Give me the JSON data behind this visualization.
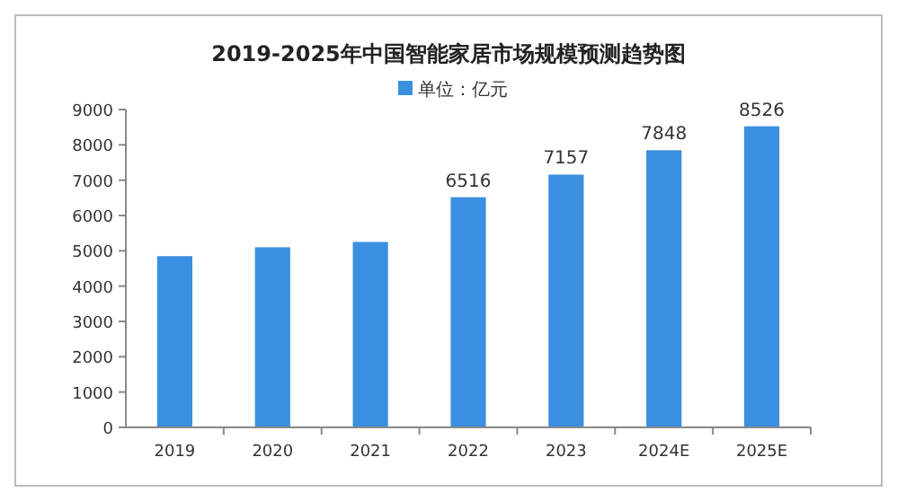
{
  "chart_data": {
    "type": "bar",
    "title": "2019-2025年中国智能家居市场规模预测趋势图",
    "categories": [
      "2019",
      "2020",
      "2021",
      "2022",
      "2023",
      "2024E",
      "2025E"
    ],
    "series": [
      {
        "name": "单位：亿元",
        "color": "#3b8fe0",
        "values": [
          4850,
          5100,
          5250,
          6516,
          7157,
          7848,
          8526
        ],
        "value_labels": [
          null,
          null,
          null,
          "6516",
          "7157",
          "7848",
          "8526"
        ]
      }
    ],
    "ylim": [
      0,
      9000
    ],
    "yticks": [
      0,
      1000,
      2000,
      3000,
      4000,
      5000,
      6000,
      7000,
      8000,
      9000
    ],
    "grid": false,
    "legend": "top"
  }
}
